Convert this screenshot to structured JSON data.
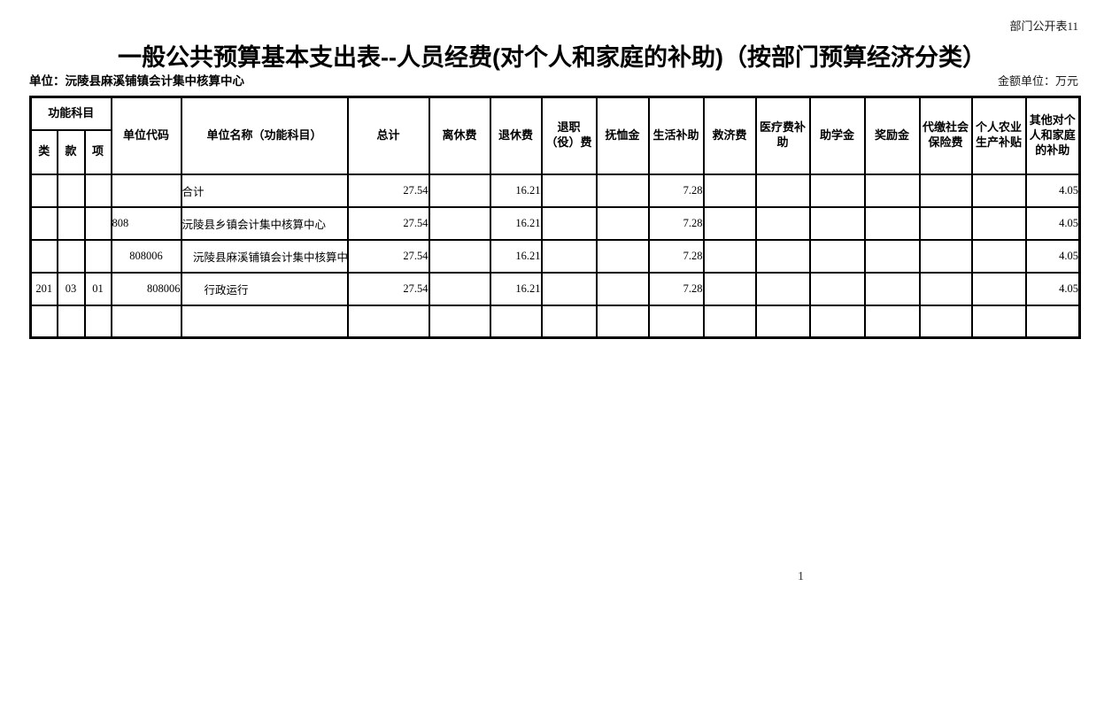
{
  "page": {
    "doc_label": "部门公开表11",
    "title": "一般公共预算基本支出表--人员经费(对个人和家庭的补助)（按部门预算经济分类）",
    "unit_label": "单位：沅陵县麻溪铺镇会计集中核算中心",
    "amount_unit_label": "金额单位：万元",
    "page_number": "1"
  },
  "table": {
    "header": {
      "func_group": "功能科目",
      "func_cols": [
        "类",
        "款",
        "项"
      ],
      "cols": [
        "单位代码",
        "单位名称（功能科目）",
        "总计",
        "离休费",
        "退休费",
        "退职（役）费",
        "抚恤金",
        "生活补助",
        "救济费",
        "医疗费补助",
        "助学金",
        "奖励金",
        "代缴社会保险费",
        "个人农业生产补贴",
        "其他对个人和家庭的补助"
      ]
    },
    "rows": [
      {
        "lei": "",
        "kuan": "",
        "xiang": "",
        "code": "",
        "code_align": "center",
        "name": "合计",
        "values": [
          "27.54",
          "",
          "16.21",
          "",
          "",
          "7.28",
          "",
          "",
          "",
          "",
          "",
          "",
          "4.05"
        ]
      },
      {
        "lei": "",
        "kuan": "",
        "xiang": "",
        "code": "808",
        "code_align": "left",
        "name": "沅陵县乡镇会计集中核算中心",
        "values": [
          "27.54",
          "",
          "16.21",
          "",
          "",
          "7.28",
          "",
          "",
          "",
          "",
          "",
          "",
          "4.05"
        ]
      },
      {
        "lei": "",
        "kuan": "",
        "xiang": "",
        "code": "808006",
        "code_align": "center",
        "name": "　沅陵县麻溪铺镇会计集中核算中心",
        "values": [
          "27.54",
          "",
          "16.21",
          "",
          "",
          "7.28",
          "",
          "",
          "",
          "",
          "",
          "",
          "4.05"
        ]
      },
      {
        "lei": "201",
        "kuan": "03",
        "xiang": "01",
        "code": "808006",
        "code_align": "right",
        "name": "　　行政运行",
        "values": [
          "27.54",
          "",
          "16.21",
          "",
          "",
          "7.28",
          "",
          "",
          "",
          "",
          "",
          "",
          "4.05"
        ]
      },
      {
        "lei": "",
        "kuan": "",
        "xiang": "",
        "code": "",
        "code_align": "center",
        "name": "",
        "values": [
          "",
          "",
          "",
          "",
          "",
          "",
          "",
          "",
          "",
          "",
          "",
          "",
          ""
        ]
      }
    ]
  }
}
